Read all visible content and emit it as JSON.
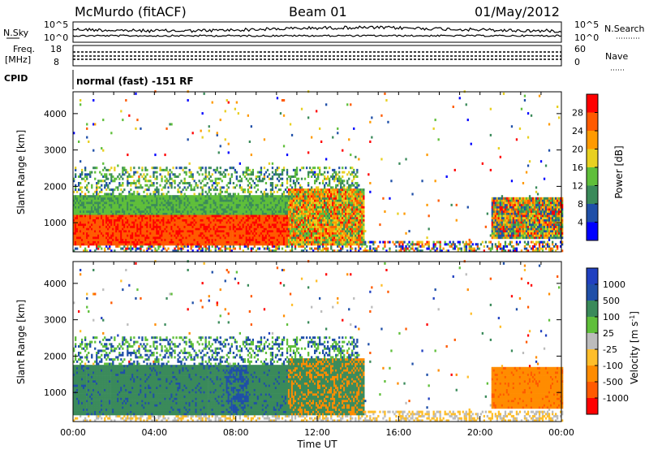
{
  "header": {
    "station": "McMurdo (fitACF)",
    "beam": "Beam 01",
    "date": "01/May/2012"
  },
  "strips": {
    "nsky_label": "N.Sky",
    "nsky_ticks": [
      "10^5",
      "10^0"
    ],
    "nsearch_label": "N.Search",
    "nsearch_ticks": [
      "10^5",
      "10^0"
    ],
    "freq_label": "Freq.",
    "freq_unit": "[MHz]",
    "freq_ticks": [
      "18",
      "8"
    ],
    "nave_label": "Nave",
    "nave_ticks": [
      "60",
      "0"
    ],
    "cpid_label": "CPID",
    "cpid_value": "normal (fast) -151 RF"
  },
  "colors": {
    "power_scale": [
      "#0000ff",
      "#1f4fa8",
      "#3a8a5a",
      "#5fbf3a",
      "#e8d020",
      "#ff9a00",
      "#ff5a00",
      "#ff0000"
    ],
    "velocity_scale": [
      "#ff0000",
      "#ff5a00",
      "#ff8c00",
      "#ffbe2a",
      "#bcbcbc",
      "#5fbf3a",
      "#3a8a5a",
      "#1f4fa8",
      "#2040c0"
    ]
  },
  "chart_data": [
    {
      "type": "heatmap",
      "panel": "power",
      "xlabel": "",
      "ylabel": "Slant Range [km]",
      "y_ticks": [
        "1000",
        "2000",
        "3000",
        "4000"
      ],
      "ylim": [
        200,
        4600
      ],
      "xlim": [
        "00:00",
        "24:00"
      ],
      "colorbar_title": "Power [dB]",
      "colorbar_ticks": [
        "4",
        "8",
        "12",
        "16",
        "20",
        "24",
        "28"
      ],
      "colorbar_range": [
        0,
        32
      ]
    },
    {
      "type": "heatmap",
      "panel": "velocity",
      "xlabel": "Time UT",
      "ylabel": "Slant Range [km]",
      "y_ticks": [
        "1000",
        "2000",
        "3000",
        "4000"
      ],
      "ylim": [
        200,
        4600
      ],
      "x_ticks": [
        "00:00",
        "04:00",
        "08:00",
        "12:00",
        "16:00",
        "20:00",
        "00:00"
      ],
      "xlim": [
        "00:00",
        "24:00"
      ],
      "colorbar_title": "Velocity [m s^-1]",
      "colorbar_ticks": [
        "1000",
        "500",
        "100",
        "25",
        "-25",
        "-100",
        "-500",
        "-1000"
      ]
    }
  ]
}
